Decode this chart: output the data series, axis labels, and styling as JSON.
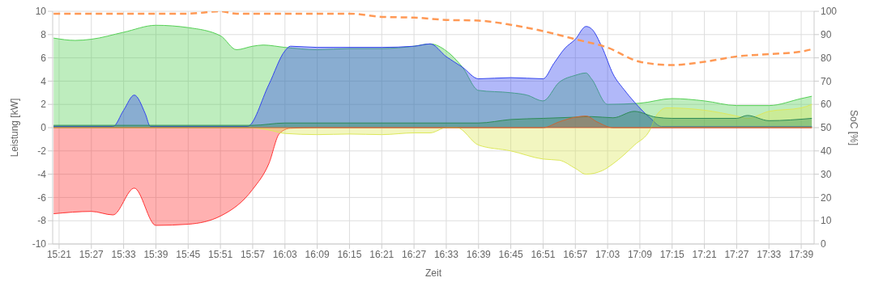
{
  "chart_data": {
    "type": "area",
    "xlabel": "Zeit",
    "ylabel": "Leistung [kW]",
    "y2label": "SoC [%]",
    "grid": true,
    "legend": false,
    "marker": "none",
    "xlim": [
      15.33,
      17.69
    ],
    "xticks": [
      {
        "value": 15.35,
        "label": "15:21"
      },
      {
        "value": 15.45,
        "label": "15:27"
      },
      {
        "value": 15.55,
        "label": "15:33"
      },
      {
        "value": 15.65,
        "label": "15:39"
      },
      {
        "value": 15.75,
        "label": "15:45"
      },
      {
        "value": 15.85,
        "label": "15:51"
      },
      {
        "value": 15.95,
        "label": "15:57"
      },
      {
        "value": 16.05,
        "label": "16:03"
      },
      {
        "value": 16.15,
        "label": "16:09"
      },
      {
        "value": 16.25,
        "label": "16:15"
      },
      {
        "value": 16.35,
        "label": "16:21"
      },
      {
        "value": 16.45,
        "label": "16:27"
      },
      {
        "value": 16.55,
        "label": "16:33"
      },
      {
        "value": 16.65,
        "label": "16:39"
      },
      {
        "value": 16.75,
        "label": "16:45"
      },
      {
        "value": 16.85,
        "label": "16:51"
      },
      {
        "value": 16.95,
        "label": "16:57"
      },
      {
        "value": 17.05,
        "label": "17:03"
      },
      {
        "value": 17.15,
        "label": "17:09"
      },
      {
        "value": 17.25,
        "label": "17:15"
      },
      {
        "value": 17.35,
        "label": "17:21"
      },
      {
        "value": 17.45,
        "label": "17:27"
      },
      {
        "value": 17.55,
        "label": "17:33"
      },
      {
        "value": 17.65,
        "label": "17:39"
      }
    ],
    "ylim": [
      -10,
      10
    ],
    "yticks": [
      -10,
      -8,
      -6,
      -4,
      -2,
      0,
      2,
      4,
      6,
      8,
      10
    ],
    "y2lim": [
      0,
      100
    ],
    "y2ticks": [
      0,
      10,
      20,
      30,
      40,
      50,
      60,
      70,
      80,
      90,
      100
    ],
    "series": [
      {
        "color": "#55d055",
        "x": [
          15.333,
          15.4,
          15.45,
          15.55,
          15.65,
          15.75,
          15.85,
          15.9,
          15.95,
          15.983,
          16.05,
          16.15,
          16.25,
          16.35,
          16.45,
          16.5,
          16.55,
          16.6,
          16.65,
          16.75,
          16.8,
          16.85,
          16.9,
          16.95,
          16.983,
          17.0,
          17.05,
          17.15,
          17.25,
          17.35,
          17.45,
          17.55,
          17.65,
          17.683
        ],
        "values": [
          7.7,
          7.5,
          7.6,
          8.2,
          8.8,
          8.6,
          7.9,
          6.7,
          7.0,
          7.1,
          6.9,
          6.7,
          6.8,
          6.8,
          7.0,
          7.2,
          6.6,
          5.2,
          3.2,
          3.0,
          2.8,
          2.3,
          3.9,
          4.5,
          4.7,
          4.2,
          2.0,
          2.1,
          2.5,
          2.3,
          1.9,
          1.9,
          2.5,
          2.7
        ]
      },
      {
        "color": "#3344ee",
        "x": [
          15.333,
          15.517,
          15.55,
          15.583,
          15.617,
          15.633,
          15.933,
          16.0,
          16.05,
          16.067,
          16.15,
          16.35,
          16.45,
          16.5,
          16.55,
          16.6,
          16.65,
          16.75,
          16.85,
          16.883,
          16.917,
          16.95,
          16.983,
          17.0,
          17.033,
          17.067,
          17.1,
          17.133,
          17.183,
          17.217,
          17.683
        ],
        "values": [
          0.1,
          0.1,
          1.5,
          2.8,
          1.2,
          0.1,
          0.1,
          3.7,
          6.6,
          7.0,
          6.9,
          6.9,
          7.0,
          7.2,
          6.1,
          5.2,
          4.2,
          4.3,
          4.2,
          5.5,
          6.8,
          7.6,
          8.7,
          8.5,
          6.9,
          4.6,
          3.3,
          2.2,
          0.8,
          0.1,
          0.1
        ]
      },
      {
        "color": "#ff3333",
        "x": [
          15.333,
          15.45,
          15.517,
          15.583,
          15.65,
          15.75,
          15.85,
          15.95,
          16.0,
          16.033,
          16.067,
          16.15,
          17.683
        ],
        "values": [
          -7.4,
          -7.2,
          -7.5,
          -5.2,
          -8.4,
          -8.3,
          -7.6,
          -5.3,
          -3.1,
          -0.5,
          -0.05,
          0,
          0
        ]
      },
      {
        "color": "#dde85a",
        "x": [
          15.333,
          15.933,
          16.0,
          16.05,
          16.15,
          16.25,
          16.35,
          16.45,
          16.5,
          16.55,
          16.583,
          16.65,
          16.75,
          16.85,
          16.9,
          16.95,
          16.983,
          17.033,
          17.067,
          17.133,
          17.183,
          17.2,
          17.233,
          17.35,
          17.45,
          17.483,
          17.55,
          17.65,
          17.683
        ],
        "values": [
          0,
          0,
          -0.2,
          -0.5,
          -0.6,
          -0.55,
          -0.6,
          -0.45,
          -0.45,
          0,
          0,
          -1.5,
          -2.0,
          -2.7,
          -2.8,
          -3.5,
          -4.0,
          -3.7,
          -3.1,
          -1.5,
          -0.1,
          1.0,
          1.7,
          1.5,
          1.0,
          0.8,
          1.4,
          1.7,
          2.0
        ]
      },
      {
        "color": "#2e8b57",
        "x": [
          15.333,
          15.95,
          16.05,
          16.65,
          16.75,
          16.85,
          16.95,
          17.0,
          17.067,
          17.133,
          17.2,
          17.25,
          17.45,
          17.483,
          17.55,
          17.683
        ],
        "values": [
          0.2,
          0.2,
          0.4,
          0.4,
          0.7,
          0.8,
          0.9,
          0.95,
          0.85,
          1.4,
          0.9,
          0.8,
          0.8,
          1.05,
          0.6,
          0.8
        ]
      },
      {
        "color": "#cc6633",
        "x": [
          15.333,
          16.85,
          16.9,
          16.95,
          16.983,
          17.017,
          17.067,
          17.683
        ],
        "values": [
          0,
          0,
          0.5,
          0.9,
          1.0,
          0.5,
          0,
          0
        ]
      },
      {
        "type": "line",
        "axis": "y2",
        "line_style": "dashed",
        "color": "#ff9955",
        "x": [
          15.333,
          15.75,
          15.85,
          15.9,
          16.25,
          16.35,
          16.45,
          16.55,
          16.65,
          16.75,
          16.85,
          16.95,
          17.05,
          17.15,
          17.25,
          17.35,
          17.45,
          17.55,
          17.65,
          17.683
        ],
        "values": [
          99,
          99,
          100,
          99,
          99,
          97.6,
          97.3,
          96.3,
          96,
          94.2,
          91.5,
          88,
          84.4,
          78.3,
          76.9,
          78.3,
          80.6,
          81.6,
          82.7,
          83.7
        ]
      }
    ]
  }
}
